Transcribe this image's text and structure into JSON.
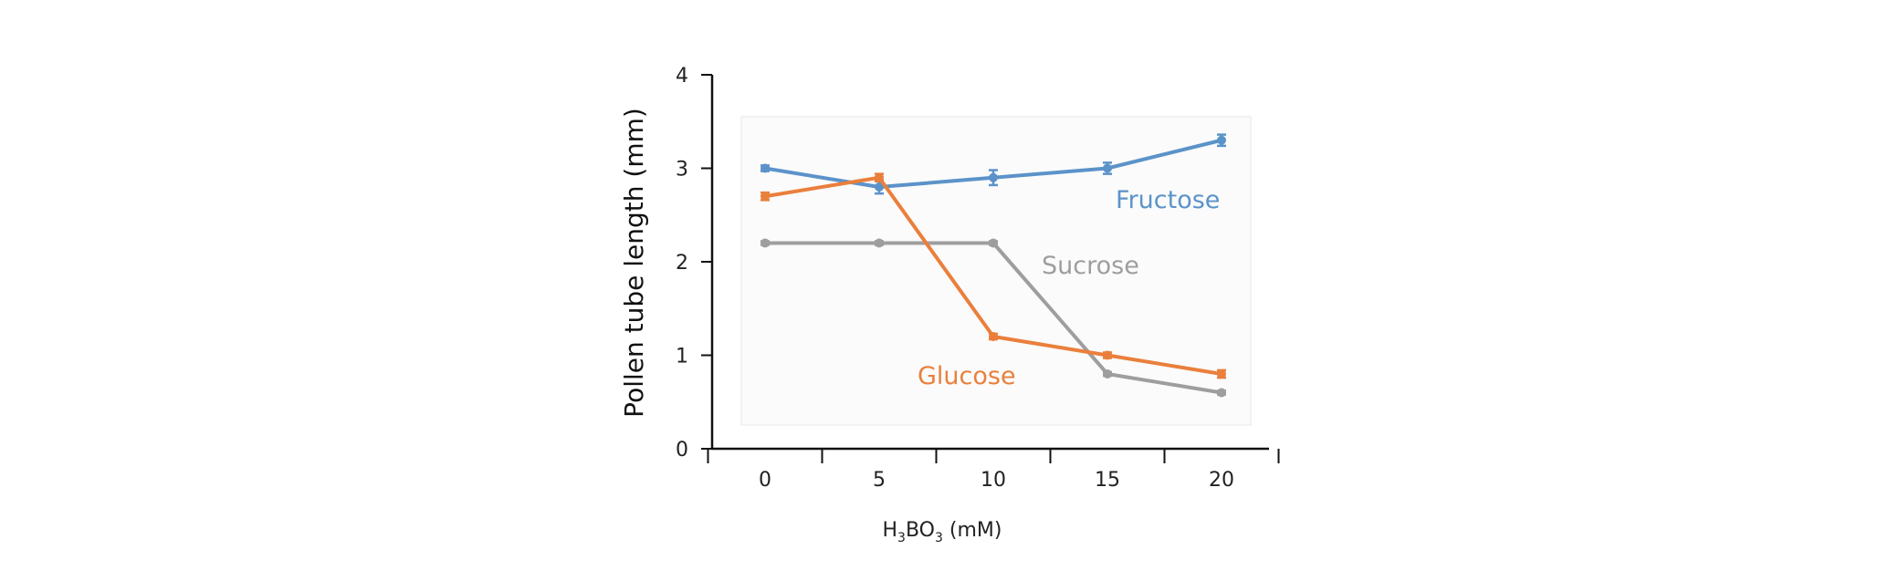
{
  "chart_data": {
    "type": "line",
    "ylabel": "Pollen tube length (mm)",
    "xlabel": {
      "main": "H",
      "sub1": "3",
      "mid": "BO",
      "sub2": "3",
      "unit": " (mM)"
    },
    "x": [
      0,
      5,
      10,
      15,
      20
    ],
    "x_tick_labels": [
      "0",
      "5",
      "10",
      "15",
      "20"
    ],
    "y_ticks": [
      "0",
      "1",
      "2",
      "3",
      "4"
    ],
    "ylim": [
      0,
      4
    ],
    "grid": false,
    "series": [
      {
        "name": "Fructose",
        "color": "#5b93c9",
        "values": [
          3.0,
          2.8,
          2.9,
          3.0,
          3.3
        ],
        "errors": [
          0.03,
          0.07,
          0.08,
          0.06,
          0.06
        ]
      },
      {
        "name": "Sucrose",
        "color": "#9e9e9e",
        "values": [
          2.2,
          2.2,
          2.2,
          0.8,
          0.6
        ],
        "errors": [
          0.02,
          0.02,
          0.02,
          0.02,
          0.02
        ]
      },
      {
        "name": "Glucose",
        "color": "#ea7f3c",
        "values": [
          2.7,
          2.9,
          1.2,
          1.0,
          0.8
        ],
        "errors": [
          0.04,
          0.04,
          0.03,
          0.03,
          0.04
        ]
      }
    ]
  }
}
